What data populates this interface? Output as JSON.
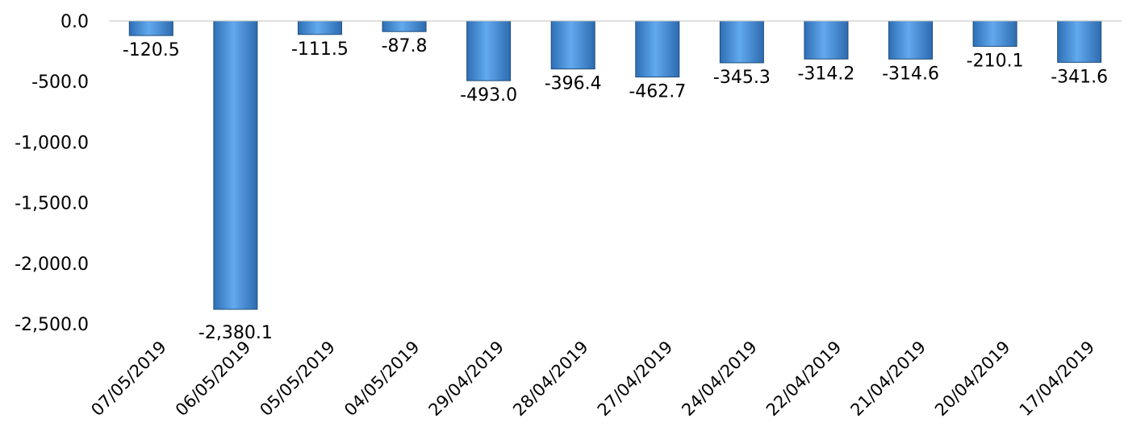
{
  "chart_data": {
    "type": "bar",
    "title": "",
    "xlabel": "",
    "ylabel": "",
    "categories": [
      "07/05/2019",
      "06/05/2019",
      "05/05/2019",
      "04/05/2019",
      "29/04/2019",
      "28/04/2019",
      "27/04/2019",
      "24/04/2019",
      "22/04/2019",
      "21/04/2019",
      "20/04/2019",
      "17/04/2019"
    ],
    "values": [
      -120.5,
      -2380.1,
      -111.5,
      -87.8,
      -493.0,
      -396.4,
      -462.7,
      -345.3,
      -314.2,
      -314.6,
      -210.1,
      -341.6
    ],
    "value_labels": [
      "-120.5",
      "-2,380.1",
      "-111.5",
      "-87.8",
      "-493.0",
      "-396.4",
      "-462.7",
      "-345.3",
      "-314.2",
      "-314.6",
      "-210.1",
      "-341.6"
    ],
    "ylim": [
      -2500,
      0
    ],
    "yticks": [
      0,
      -500,
      -1000,
      -1500,
      -2000,
      -2500
    ],
    "ytick_labels": [
      "0.0",
      "-500.0",
      "-1,000.0",
      "-1,500.0",
      "-2,000.0",
      "-2,500.0"
    ],
    "grid": false,
    "legend": "none",
    "bar_color": "#4a8fd4",
    "bar_edge_color": "#1f4e79"
  }
}
